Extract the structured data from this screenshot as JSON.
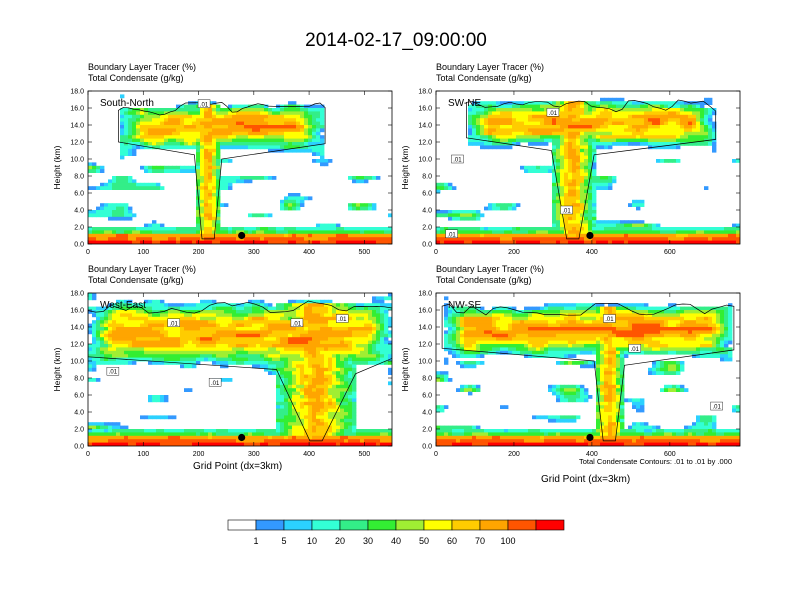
{
  "title": "2014-02-17_09:00:00",
  "condensate_note": "Total Condensate Contours: .01 to .01 by .000",
  "colorbar": {
    "colors": [
      "#ffffff",
      "#3399ff",
      "#2bd1ff",
      "#33ffd5",
      "#33ee88",
      "#33ee33",
      "#a0ee33",
      "#ffff00",
      "#ffcc00",
      "#ffa500",
      "#ff5500",
      "#ff0000"
    ],
    "labels": [
      "1",
      "5",
      "10",
      "20",
      "30",
      "40",
      "50",
      "60",
      "70",
      "100"
    ]
  },
  "chart_data": [
    {
      "type": "heatmap",
      "panel_label": "South-North",
      "title_line1": "Boundary Layer Tracer    (%)",
      "title_line2": "Total Condensate    (g/kg)",
      "ylabel": "Height (km)",
      "xlabel": "",
      "xlim": [
        0,
        550
      ],
      "ylim": [
        0,
        18
      ],
      "xticks": [
        "0",
        "100",
        "200",
        "300",
        "400",
        "500"
      ],
      "yticks": [
        "0.0",
        "2.0",
        "4.0",
        "6.0",
        "8.0",
        "10.0",
        "12.0",
        "14.0",
        "16.0",
        "18.0"
      ],
      "contour_labels": [
        {
          "x": 210,
          "y": 16.5,
          "text": ".01"
        }
      ],
      "marker": {
        "x": 278,
        "y": 1.0
      }
    },
    {
      "type": "heatmap",
      "panel_label": "SW-NE",
      "title_line1": "Boundary Layer Tracer    (%)",
      "title_line2": "Total Condensate    (g/kg)",
      "ylabel": "Height (km)",
      "xlabel": "",
      "xlim": [
        0,
        780
      ],
      "ylim": [
        0,
        18
      ],
      "xticks": [
        "0",
        "200",
        "400",
        "600"
      ],
      "yticks": [
        "0.0",
        "2.0",
        "4.0",
        "6.0",
        "8.0",
        "10.0",
        "12.0",
        "14.0",
        "16.0",
        "18.0"
      ],
      "contour_labels": [
        {
          "x": 300,
          "y": 15.5,
          "text": ".01"
        },
        {
          "x": 55,
          "y": 10.0,
          "text": ".01"
        },
        {
          "x": 335,
          "y": 4.0,
          "text": ".01"
        },
        {
          "x": 40,
          "y": 1.2,
          "text": ".01"
        }
      ],
      "marker": {
        "x": 395,
        "y": 1.0
      }
    },
    {
      "type": "heatmap",
      "panel_label": "West-East",
      "title_line1": "Boundary Layer Tracer    (%)",
      "title_line2": "Total Condensate    (g/kg)",
      "ylabel": "Height (km)",
      "xlabel": "Grid Point (dx=3km)",
      "xlim": [
        0,
        550
      ],
      "ylim": [
        0,
        18
      ],
      "xticks": [
        "0",
        "100",
        "200",
        "300",
        "400",
        "500"
      ],
      "yticks": [
        "0.0",
        "2.0",
        "4.0",
        "6.0",
        "8.0",
        "10.0",
        "12.0",
        "14.0",
        "16.0",
        "18.0"
      ],
      "contour_labels": [
        {
          "x": 155,
          "y": 14.5,
          "text": ".01"
        },
        {
          "x": 378,
          "y": 14.5,
          "text": ".01"
        },
        {
          "x": 460,
          "y": 15.0,
          "text": ".01"
        },
        {
          "x": 45,
          "y": 8.8,
          "text": ".01"
        },
        {
          "x": 230,
          "y": 7.5,
          "text": ".01"
        }
      ],
      "marker": {
        "x": 278,
        "y": 1.0
      }
    },
    {
      "type": "heatmap",
      "panel_label": "NW-SE",
      "title_line1": "Boundary Layer Tracer    (%)",
      "title_line2": "Total Condensate    (g/kg)",
      "ylabel": "Height (km)",
      "xlabel": "Grid Point (dx=3km)",
      "xlim": [
        0,
        780
      ],
      "ylim": [
        0,
        18
      ],
      "xticks": [
        "0",
        "200",
        "400",
        "600"
      ],
      "yticks": [
        "0.0",
        "2.0",
        "4.0",
        "6.0",
        "8.0",
        "10.0",
        "12.0",
        "14.0",
        "16.0",
        "18.0"
      ],
      "contour_labels": [
        {
          "x": 445,
          "y": 15.0,
          "text": ".01"
        },
        {
          "x": 510,
          "y": 11.5,
          "text": ".01"
        },
        {
          "x": 720,
          "y": 4.7,
          "text": ".01"
        }
      ],
      "marker": {
        "x": 395,
        "y": 1.0
      }
    }
  ]
}
